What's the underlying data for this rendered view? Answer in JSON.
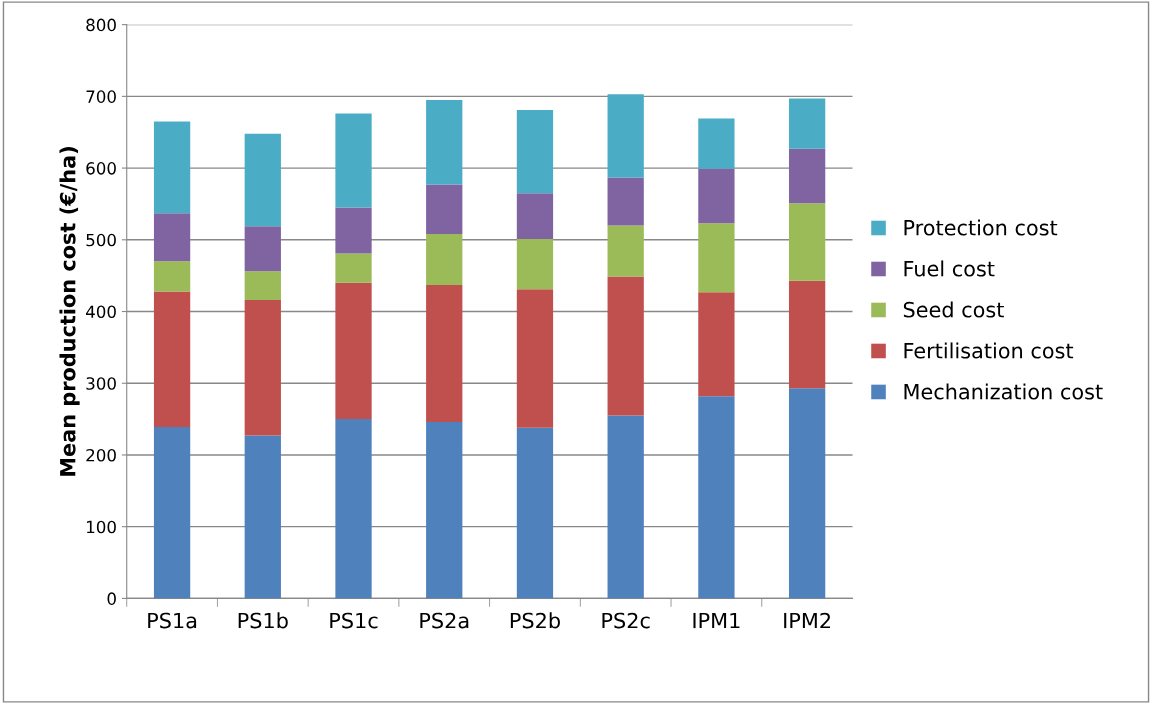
{
  "chart_data": {
    "type": "bar",
    "stacked": true,
    "ylabel": "Mean production cost (€/ha)",
    "categories": [
      "PS1a",
      "PS1b",
      "PS1c",
      "PS2a",
      "PS2b",
      "PS2c",
      "IPM1",
      "IPM2"
    ],
    "series": [
      {
        "name": "Mechanization cost",
        "color": "#4f81bd",
        "values": [
          239,
          227,
          250,
          246,
          238,
          255,
          282,
          293
        ]
      },
      {
        "name": "Fertilisation cost",
        "color": "#c0504d",
        "values": [
          189,
          189,
          190,
          191,
          193,
          194,
          145,
          150
        ]
      },
      {
        "name": "Seed cost",
        "color": "#9bbb59",
        "values": [
          42,
          40,
          41,
          71,
          70,
          71,
          96,
          108
        ]
      },
      {
        "name": "Fuel cost",
        "color": "#8064a2",
        "values": [
          67,
          63,
          64,
          69,
          64,
          67,
          76,
          76
        ]
      },
      {
        "name": "Protection cost",
        "color": "#4bacc6",
        "values": [
          128,
          129,
          131,
          118,
          116,
          116,
          70,
          70
        ]
      }
    ],
    "ylim": [
      0,
      800
    ],
    "yticks": [
      0,
      100,
      200,
      300,
      400,
      500,
      600,
      700,
      800
    ],
    "grid": "y",
    "legend": "right"
  }
}
